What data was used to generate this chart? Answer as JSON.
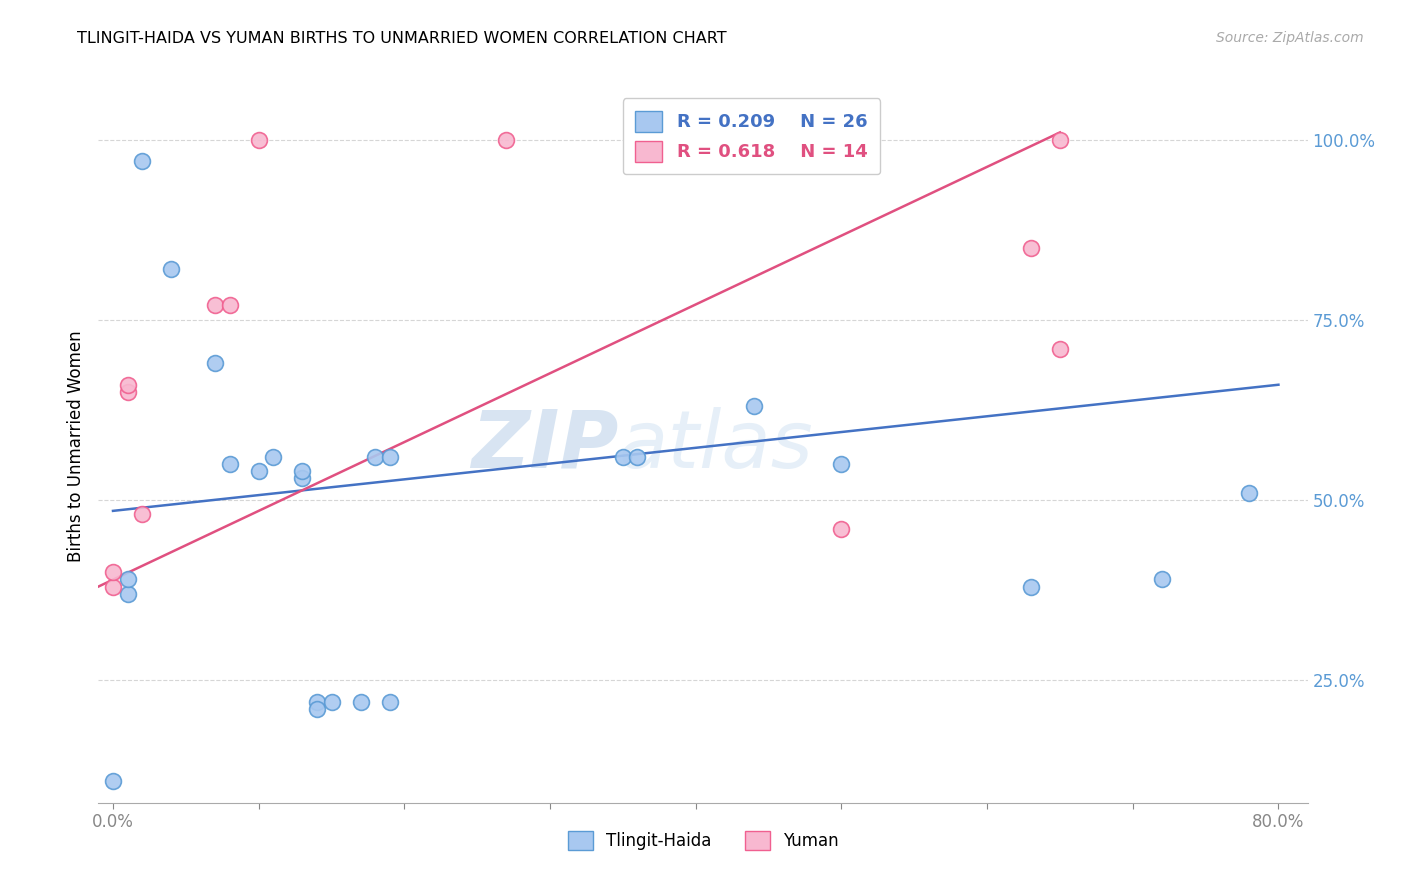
{
  "title": "TLINGIT-HAIDA VS YUMAN BIRTHS TO UNMARRIED WOMEN CORRELATION CHART",
  "source": "Source: ZipAtlas.com",
  "ylabel": "Births to Unmarried Women",
  "yticks": [
    "25.0%",
    "50.0%",
    "75.0%",
    "100.0%"
  ],
  "ytick_values": [
    0.25,
    0.5,
    0.75,
    1.0
  ],
  "xlim": [
    -0.01,
    0.82
  ],
  "ylim": [
    0.08,
    1.07
  ],
  "blue_color": "#a8c8f0",
  "pink_color": "#f8b8d0",
  "blue_edge_color": "#5b9bd5",
  "pink_edge_color": "#f06090",
  "blue_line_color": "#4472c4",
  "pink_line_color": "#e05080",
  "axis_label_color": "#5b9bd5",
  "watermark_zip": "ZIP",
  "watermark_atlas": "atlas",
  "legend_r_blue": "R = 0.209",
  "legend_n_blue": "N = 26",
  "legend_r_pink": "R = 0.618",
  "legend_n_pink": "N = 14",
  "tlingit_x": [
    0.0,
    0.01,
    0.01,
    0.02,
    0.04,
    0.07,
    0.08,
    0.1,
    0.11,
    0.13,
    0.13,
    0.14,
    0.14,
    0.15,
    0.17,
    0.18,
    0.19,
    0.19,
    0.35,
    0.36,
    0.44,
    0.5,
    0.5,
    0.63,
    0.72,
    0.78
  ],
  "tlingit_y": [
    0.11,
    0.37,
    0.39,
    0.97,
    0.82,
    0.69,
    0.55,
    0.54,
    0.56,
    0.53,
    0.54,
    0.22,
    0.21,
    0.22,
    0.22,
    0.56,
    0.56,
    0.22,
    0.56,
    0.56,
    0.63,
    0.55,
    1.0,
    0.38,
    0.39,
    0.51
  ],
  "yuman_x": [
    0.0,
    0.0,
    0.01,
    0.01,
    0.02,
    0.07,
    0.08,
    0.1,
    0.27,
    0.5,
    0.5,
    0.63,
    0.65,
    0.65
  ],
  "yuman_y": [
    0.38,
    0.4,
    0.65,
    0.66,
    0.48,
    0.77,
    0.77,
    1.0,
    1.0,
    0.46,
    1.0,
    0.85,
    1.0,
    0.71
  ],
  "blue_trend_x": [
    0.0,
    0.8
  ],
  "blue_trend_y": [
    0.485,
    0.66
  ],
  "pink_trend_x": [
    -0.01,
    0.65
  ],
  "pink_trend_y": [
    0.38,
    1.01
  ]
}
